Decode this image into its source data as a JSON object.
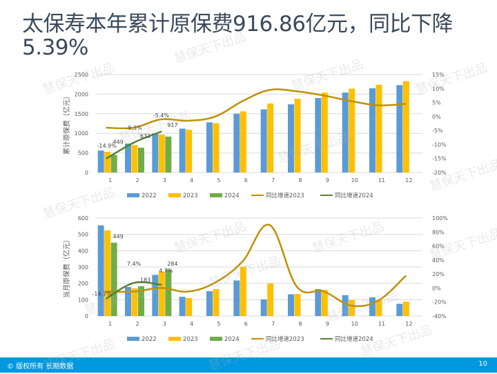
{
  "title": "太保寿本年累计原保费916.86亿元，同比下降5.39%",
  "watermark": "慧保天下出品",
  "footer": {
    "copyright": "© 版权所有 长期数据",
    "page_number": "10"
  },
  "colors": {
    "y2022": "#5b9bd5",
    "y2023": "#ffc000",
    "y2024": "#70ad47",
    "growth2023": "#bf9000",
    "growth2024": "#548235",
    "footer_bg": "#0098e0",
    "title": "#3a4a5c"
  },
  "chart_data": [
    {
      "type": "bar",
      "title": "累计原保费",
      "ylabel": "累计原保费（亿元）",
      "y2label": "同比增速",
      "categories": [
        "1",
        "2",
        "3",
        "4",
        "5",
        "6",
        "7",
        "8",
        "9",
        "10",
        "11",
        "12"
      ],
      "ylim": [
        0,
        2500
      ],
      "yticks": [
        "0",
        "500",
        "1000",
        "1500",
        "2000",
        "2500"
      ],
      "y2lim": [
        -20,
        15
      ],
      "y2ticks": [
        "-20%",
        "-15%",
        "-10%",
        "-5%",
        "0%",
        "5%",
        "10%",
        "15%"
      ],
      "grid": true,
      "legend_position": "bottom",
      "series": [
        {
          "name": "2022",
          "kind": "bar",
          "color_key": "y2022",
          "values": [
            560,
            740,
            1000,
            1120,
            1280,
            1500,
            1610,
            1740,
            1900,
            2040,
            2150,
            2230
          ]
        },
        {
          "name": "2023",
          "kind": "bar",
          "color_key": "y2023",
          "values": [
            530,
            700,
            970,
            1090,
            1260,
            1560,
            1760,
            1880,
            2040,
            2140,
            2240,
            2330
          ]
        },
        {
          "name": "2024",
          "kind": "bar",
          "color_key": "y2024",
          "values": [
            449,
            633,
            917,
            null,
            null,
            null,
            null,
            null,
            null,
            null,
            null,
            null
          ],
          "labels": [
            "449",
            "633",
            "917"
          ]
        },
        {
          "name": "同比增速2023",
          "kind": "line",
          "axis": "right",
          "color_key": "growth2023",
          "values": [
            -4,
            -4,
            -1,
            -1.5,
            0,
            5.5,
            9.5,
            9,
            7.5,
            5.5,
            4,
            4.5
          ]
        },
        {
          "name": "同比增速2024",
          "kind": "line",
          "axis": "right",
          "color_key": "growth2024",
          "values": [
            -14.9,
            -9.3,
            -5.4,
            null,
            null,
            null,
            null,
            null,
            null,
            null,
            null,
            null
          ],
          "labels": [
            "-14.9%",
            "-9.3%",
            "-5.4%"
          ]
        }
      ]
    },
    {
      "type": "bar",
      "title": "当月原保费",
      "ylabel": "当月原保费（亿元）",
      "y2label": "同比增速",
      "categories": [
        "1",
        "2",
        "3",
        "4",
        "5",
        "6",
        "7",
        "8",
        "9",
        "10",
        "11",
        "12"
      ],
      "ylim": [
        0,
        600
      ],
      "yticks": [
        "0",
        "100",
        "200",
        "300",
        "400",
        "500",
        "600"
      ],
      "y2lim": [
        -40,
        100
      ],
      "y2ticks": [
        "-40%",
        "-20%",
        "0%",
        "20%",
        "40%",
        "60%",
        "80%",
        "100%"
      ],
      "grid": true,
      "legend_position": "bottom",
      "series": [
        {
          "name": "2022",
          "kind": "bar",
          "color_key": "y2022",
          "values": [
            555,
            178,
            252,
            118,
            152,
            218,
            102,
            133,
            165,
            128,
            115,
            75
          ]
        },
        {
          "name": "2023",
          "kind": "bar",
          "color_key": "y2023",
          "values": [
            525,
            170,
            270,
            110,
            165,
            302,
            200,
            135,
            160,
            98,
            98,
            88
          ]
        },
        {
          "name": "2024",
          "kind": "bar",
          "color_key": "y2024",
          "values": [
            449,
            183,
            284,
            null,
            null,
            null,
            null,
            null,
            null,
            null,
            null,
            null
          ],
          "labels": [
            "449",
            "183",
            "284"
          ]
        },
        {
          "name": "同比增速2023",
          "kind": "line",
          "axis": "right",
          "color_key": "growth2023",
          "values": [
            -5,
            -5,
            0,
            -5,
            8,
            38,
            90,
            2,
            -5,
            -25,
            -18,
            17
          ]
        },
        {
          "name": "同比增速2024",
          "kind": "line",
          "axis": "right",
          "color_key": "growth2024",
          "values": [
            -14.7,
            7.4,
            4.7,
            null,
            null,
            null,
            null,
            null,
            null,
            null,
            null,
            null
          ],
          "labels": [
            "-14.7%",
            "7.4%",
            "4.7%"
          ]
        }
      ]
    }
  ]
}
